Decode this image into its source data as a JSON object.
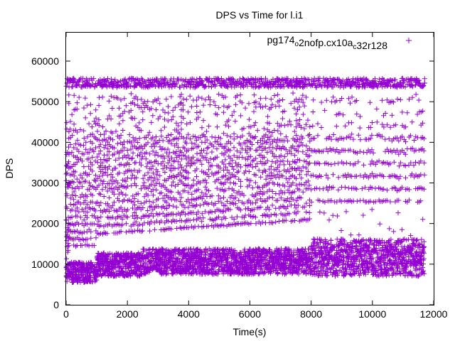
{
  "chart_data": {
    "type": "scatter",
    "title": "DPS vs Time for l.i1",
    "xlabel": "Time(s)",
    "ylabel": "DPS",
    "xlim": [
      0,
      12000
    ],
    "ylim": [
      0,
      67000
    ],
    "xticks": [
      0,
      2000,
      4000,
      6000,
      8000,
      10000,
      12000
    ],
    "yticks": [
      0,
      10000,
      20000,
      30000,
      40000,
      50000,
      60000
    ],
    "grid": false,
    "legend_position": "top-right",
    "marker": "+",
    "series": [
      {
        "name": "pg174_o2nofp.cx10a_c32r128",
        "name_parts": [
          {
            "text": "pg174",
            "sub": false
          },
          {
            "text": "o",
            "sub": true
          },
          {
            "text": "2nofp.cx10a",
            "sub": false
          },
          {
            "text": "c",
            "sub": true
          },
          {
            "text": "32r128",
            "sub": false
          }
        ],
        "color": "#9400d3",
        "time_range": [
          0,
          11700
        ],
        "bands": [
          {
            "x_start": 0,
            "x_end": 1000,
            "y_min": 5500,
            "y_max": 10500,
            "note": "dense"
          },
          {
            "x_start": 1000,
            "x_end": 2500,
            "y_min": 7000,
            "y_max": 13000,
            "note": "dense"
          },
          {
            "x_start": 2500,
            "x_end": 8000,
            "y_min": 7500,
            "y_max": 14000,
            "note": "dense"
          },
          {
            "x_start": 8000,
            "x_end": 11700,
            "y_min": 7000,
            "y_max": 16500,
            "note": "dense"
          },
          {
            "x_start": 0,
            "x_end": 8000,
            "y_min": 14000,
            "y_max": 54000,
            "note": "stepped levels"
          },
          {
            "x_start": 8000,
            "x_end": 11700,
            "y_min": 25000,
            "y_max": 54000,
            "note": "stepped levels"
          },
          {
            "x_start": 0,
            "x_end": 11700,
            "y_min": 53000,
            "y_max": 56000,
            "note": "ceiling"
          }
        ]
      }
    ]
  }
}
